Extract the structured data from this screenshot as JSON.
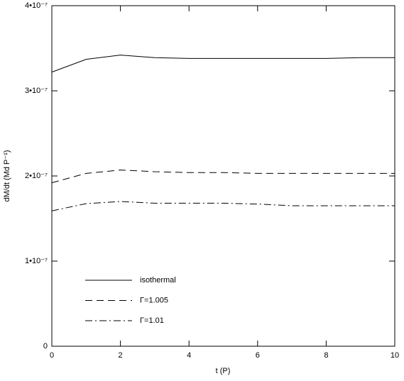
{
  "chart_data": {
    "type": "line",
    "x_label": "t (P)",
    "y_label": "dM/dt (Md P⁻¹)",
    "x": [
      0,
      1,
      2,
      3,
      4,
      5,
      6,
      7,
      8,
      9,
      10
    ],
    "series": [
      {
        "name": "isothermal",
        "color": "#000000",
        "dash": "none",
        "values": [
          3.22e-07,
          3.37e-07,
          3.42e-07,
          3.39e-07,
          3.38e-07,
          3.38e-07,
          3.38e-07,
          3.38e-07,
          3.38e-07,
          3.39e-07,
          3.39e-07
        ]
      },
      {
        "name": "Γ=1.005",
        "color": "#000000",
        "dash": "10,6",
        "values": [
          1.92e-07,
          2.03e-07,
          2.07e-07,
          2.05e-07,
          2.04e-07,
          2.04e-07,
          2.03e-07,
          2.03e-07,
          2.03e-07,
          2.03e-07,
          2.03e-07
        ]
      },
      {
        "name": "Γ=1.01",
        "color": "#000000",
        "dash": "10,4,2,4",
        "values": [
          1.59e-07,
          1.675e-07,
          1.7e-07,
          1.68e-07,
          1.68e-07,
          1.68e-07,
          1.67e-07,
          1.65e-07,
          1.65e-07,
          1.65e-07,
          1.65e-07
        ]
      }
    ],
    "xlim": [
      0,
      10
    ],
    "xticks": [
      0,
      2,
      4,
      6,
      8,
      10
    ],
    "ylim": [
      0,
      4e-07
    ],
    "yticks": [
      0,
      {
        "value": 1e-07,
        "label": "1•10⁻⁷"
      },
      {
        "value": 2e-07,
        "label": "2•10⁻⁷"
      },
      {
        "value": 3e-07,
        "label": "3•10⁻⁷"
      },
      {
        "value": 4e-07,
        "label": "4•10⁻⁷"
      }
    ],
    "legend": "lower-left"
  }
}
